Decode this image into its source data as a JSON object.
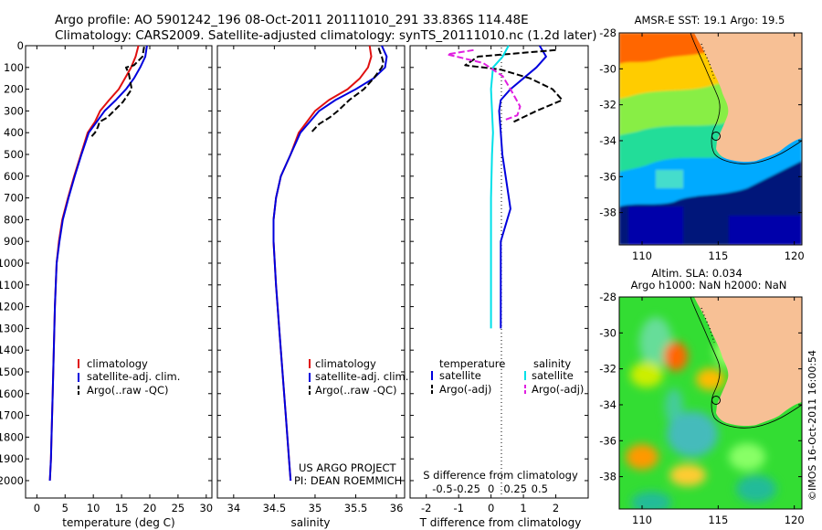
{
  "header": {
    "line1": "Argo profile: AO 5901242_196 08-Oct-2011 20111010_291 33.836S 114.48E",
    "line2": "Climatology: CARS2009. Satellite-adjusted climatology: synTS_20111010.nc (1.2d later)"
  },
  "credit": {
    "project": "US ARGO PROJECT",
    "pi": "PI: DEAN ROEMMICH",
    "imos": "©IMOS 16-Oct-2011 16:00:54"
  },
  "colors": {
    "climatology": "#e01010",
    "satellite": "#0000dd",
    "argo": "#000000",
    "satellite_s": "#00e0e8",
    "argo_s": "#e020e0",
    "land": "#f7c095"
  },
  "chart_data": [
    {
      "type": "line",
      "xlabel": "temperature (deg C)",
      "ylabel": "",
      "xlim": [
        -2,
        31
      ],
      "ylim": [
        0,
        2080
      ],
      "y_reversed": true,
      "xticks": [
        0,
        5,
        10,
        15,
        20,
        25,
        30
      ],
      "yticks": [
        0,
        100,
        200,
        300,
        400,
        500,
        600,
        700,
        800,
        900,
        1000,
        1100,
        1200,
        1300,
        1400,
        1500,
        1600,
        1700,
        1800,
        1900,
        2000
      ],
      "legend": [
        "climatology",
        "satellite-adj. clim.",
        "Argo(..raw -QC)"
      ],
      "series": [
        {
          "name": "climatology",
          "style": "solid",
          "color": "#e01010",
          "x": [
            18,
            17.5,
            16.7,
            15.6,
            14.5,
            12.8,
            11.2,
            10.3,
            9.0,
            7.8,
            6.6,
            5.5,
            4.5,
            3.9,
            3.5,
            3.2,
            3.0,
            2.8,
            2.6,
            2.5,
            2.3
          ],
          "y": [
            0,
            50,
            100,
            150,
            200,
            250,
            300,
            350,
            400,
            500,
            600,
            700,
            800,
            900,
            1000,
            1200,
            1400,
            1600,
            1800,
            1900,
            2000
          ]
        },
        {
          "name": "satellite-adj. clim.",
          "style": "solid",
          "color": "#0000dd",
          "x": [
            19.5,
            19.2,
            18.3,
            17.2,
            15.8,
            14.0,
            12.0,
            10.6,
            9.2,
            7.9,
            6.7,
            5.6,
            4.6,
            4.0,
            3.5,
            3.2,
            3.0,
            2.8,
            2.6,
            2.5,
            2.3
          ],
          "y": [
            0,
            50,
            100,
            150,
            200,
            250,
            300,
            350,
            400,
            500,
            600,
            700,
            800,
            900,
            1000,
            1200,
            1400,
            1600,
            1800,
            1900,
            2000
          ]
        },
        {
          "name": "Argo(..raw -QC)",
          "style": "dashed",
          "color": "#000000",
          "x": [
            19.0,
            18.7,
            17.2,
            15.8,
            16.3,
            16.8,
            15.2,
            12.5,
            11.1,
            10.8,
            10.3,
            9.6
          ],
          "y": [
            5,
            50,
            90,
            100,
            130,
            200,
            260,
            330,
            350,
            375,
            400,
            420
          ]
        }
      ]
    },
    {
      "type": "line",
      "xlabel": "salinity",
      "ylabel": "",
      "xlim": [
        33.8,
        36.1
      ],
      "ylim": [
        0,
        2080
      ],
      "y_reversed": true,
      "xticks": [
        34,
        34.5,
        35,
        35.5,
        36
      ],
      "legend": [
        "climatology",
        "satellite-adj. clim.",
        "Argo(..raw -QC)"
      ],
      "series": [
        {
          "name": "climatology",
          "style": "solid",
          "color": "#e01010",
          "x": [
            35.67,
            35.69,
            35.65,
            35.55,
            35.4,
            35.17,
            35.0,
            34.8,
            34.7,
            34.58,
            34.52,
            34.49,
            34.49,
            34.52,
            34.56,
            34.6,
            34.64,
            34.68,
            34.7
          ],
          "y": [
            0,
            50,
            100,
            150,
            200,
            250,
            300,
            400,
            500,
            600,
            700,
            800,
            900,
            1100,
            1300,
            1500,
            1700,
            1900,
            2000
          ]
        },
        {
          "name": "satellite-adj. clim.",
          "style": "solid",
          "color": "#0000dd",
          "x": [
            35.82,
            35.88,
            35.86,
            35.72,
            35.5,
            35.25,
            35.05,
            34.82,
            34.7,
            34.58,
            34.52,
            34.49,
            34.49,
            34.52,
            34.56,
            34.6,
            34.64,
            34.68,
            34.7
          ],
          "y": [
            0,
            50,
            100,
            150,
            200,
            250,
            300,
            400,
            500,
            600,
            700,
            800,
            900,
            1100,
            1300,
            1500,
            1700,
            1900,
            2000
          ]
        },
        {
          "name": "Argo(..raw -QC)",
          "style": "dashed",
          "color": "#000000",
          "x": [
            35.78,
            35.82,
            35.84,
            35.82,
            35.72,
            35.6,
            35.42,
            35.28,
            35.18,
            35.05,
            34.95
          ],
          "y": [
            10,
            50,
            80,
            100,
            150,
            200,
            250,
            300,
            330,
            360,
            400
          ]
        }
      ]
    },
    {
      "type": "line",
      "xlabel": "T difference from climatology",
      "xlabel_top": "S difference from climatology",
      "xlim": [
        -2.5,
        3.0
      ],
      "ylim": [
        0,
        2080
      ],
      "y_reversed": true,
      "xticks": [
        -2,
        -1,
        0,
        1,
        2
      ],
      "xticks_s": [
        -0.5,
        -0.25,
        0,
        0.25,
        0.5
      ],
      "legend_title_t": "temperature",
      "legend_title_s": "salinity",
      "legend": [
        "satellite",
        "Argo(-adj)",
        "satellite",
        "Argo(-adj)"
      ],
      "series": [
        {
          "name": "satellite",
          "variable": "temperature",
          "style": "solid",
          "color": "#0000dd",
          "x": [
            1.5,
            1.7,
            1.4,
            1.0,
            0.6,
            0.3,
            0.25,
            0.3,
            0.35,
            0.45,
            0.6,
            0.4,
            0.3,
            0.3,
            0.3,
            0.3
          ],
          "y": [
            0,
            50,
            100,
            150,
            200,
            250,
            300,
            400,
            500,
            600,
            750,
            850,
            900,
            1000,
            1200,
            1300
          ]
        },
        {
          "name": "Argo(-adj)",
          "variable": "temperature",
          "style": "dashed",
          "color": "#000000",
          "x": [
            2.0,
            -0.4,
            -0.8,
            0.3,
            1.2,
            1.9,
            2.2,
            1.4,
            0.7
          ],
          "y": [
            20,
            50,
            90,
            110,
            150,
            200,
            250,
            300,
            350
          ]
        },
        {
          "name": "satellite",
          "variable": "salinity",
          "style": "solid",
          "color": "#00e0e8",
          "x": [
            0.18,
            0.12,
            0.02,
            0.0,
            0.01,
            0.02,
            0.01,
            0.0,
            0.0,
            0.0,
            0.0
          ],
          "y": [
            0,
            50,
            100,
            200,
            300,
            400,
            500,
            700,
            900,
            1100,
            1300
          ]
        },
        {
          "name": "Argo(-adj)",
          "variable": "salinity",
          "style": "dashed",
          "color": "#e020e0",
          "x": [
            -0.18,
            -0.45,
            -0.08,
            0.12,
            0.2,
            0.3,
            0.27,
            0.15
          ],
          "y": [
            20,
            40,
            80,
            140,
            200,
            280,
            320,
            340
          ]
        }
      ]
    },
    {
      "type": "heatmap",
      "title": "AMSR-E SST: 19.1 Argo: 19.5",
      "xlim": [
        108.5,
        120.5
      ],
      "ylim": [
        -39.8,
        -28
      ],
      "xticks": [
        110,
        115,
        120
      ],
      "yticks": [
        -28,
        -30,
        -32,
        -34,
        -36,
        -38
      ],
      "float_position": [
        114.48,
        -33.836
      ]
    },
    {
      "type": "heatmap",
      "title_line1": "Altim. SLA: 0.034",
      "title_line2": "Argo h1000: NaN h2000: NaN",
      "xlim": [
        108.5,
        120.5
      ],
      "ylim": [
        -39.8,
        -28
      ],
      "xticks": [
        110,
        115,
        120
      ],
      "yticks": [
        -28,
        -30,
        -32,
        -34,
        -36,
        -38
      ],
      "float_position": [
        114.48,
        -33.836
      ]
    }
  ]
}
